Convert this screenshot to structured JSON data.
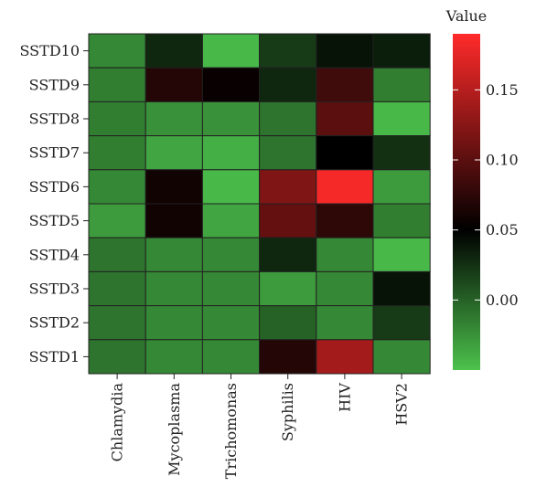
{
  "chart_data": {
    "type": "heatmap",
    "rows": [
      "SSTD10",
      "SSTD9",
      "SSTD8",
      "SSTD7",
      "SSTD6",
      "SSTD5",
      "SSTD4",
      "SSTD3",
      "SSTD2",
      "SSTD1"
    ],
    "columns": [
      "Chlamydia",
      "Mycoplasma",
      "Trichomonas",
      "Syphilis",
      "HIV",
      "HSV2"
    ],
    "values": [
      [
        -0.02,
        0.03,
        -0.045,
        0.02,
        0.04,
        0.035
      ],
      [
        -0.015,
        0.07,
        0.055,
        0.03,
        0.085,
        -0.015
      ],
      [
        -0.015,
        -0.025,
        -0.025,
        -0.01,
        0.1,
        -0.045
      ],
      [
        -0.015,
        -0.035,
        -0.04,
        -0.01,
        0.05,
        0.025
      ],
      [
        -0.02,
        0.06,
        -0.045,
        0.12,
        0.185,
        -0.03
      ],
      [
        -0.03,
        0.06,
        -0.035,
        0.105,
        0.075,
        -0.015
      ],
      [
        -0.01,
        -0.02,
        -0.02,
        0.03,
        -0.02,
        -0.045
      ],
      [
        -0.01,
        -0.02,
        -0.02,
        -0.03,
        -0.02,
        0.04
      ],
      [
        -0.01,
        -0.02,
        -0.02,
        0.0,
        -0.02,
        0.02
      ],
      [
        -0.01,
        -0.02,
        -0.02,
        0.07,
        0.14,
        -0.02
      ]
    ],
    "legend": {
      "title": "Value",
      "ticks": [
        0.0,
        0.05,
        0.1,
        0.15
      ],
      "tick_labels": [
        "0.00",
        "0.05",
        "0.10",
        "0.15"
      ],
      "range": [
        -0.05,
        0.19
      ],
      "colors": {
        "low": "#4cc24c",
        "mid": "#000000",
        "high": "#ff2a2a"
      }
    }
  }
}
